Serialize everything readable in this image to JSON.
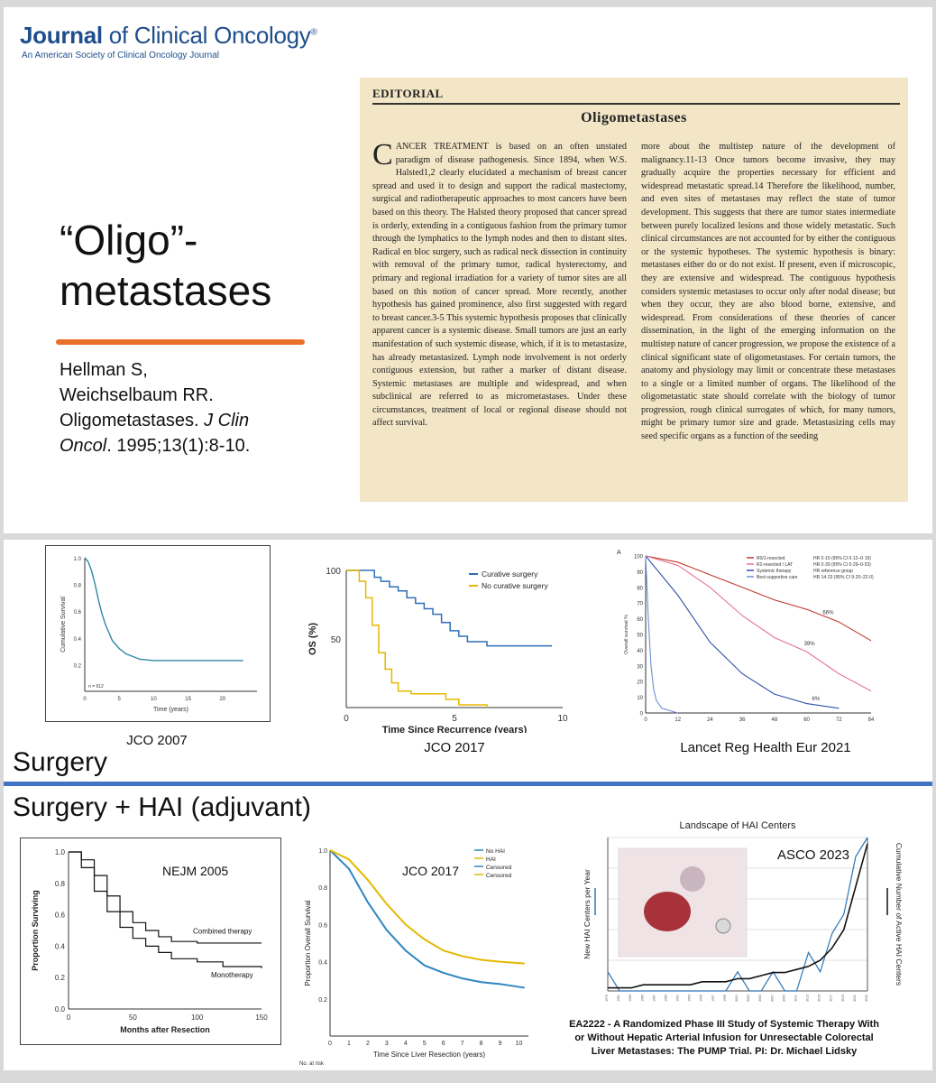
{
  "slide1": {
    "journal": {
      "name_bold": "Journal",
      "name_rest": " of Clinical Oncology",
      "registered": "®",
      "subtitle": "An American Society of Clinical Oncology Journal"
    },
    "title_line1": "“Oligo”-",
    "title_line2": "metastases",
    "citation": {
      "authors1": "Hellman S,",
      "authors2": "Weichselbaum RR.",
      "title": "Oligometastases. ",
      "journal": "J Clin",
      "journal2": "Oncol",
      "details": ". 1995;13(1):8-10."
    },
    "editorial": {
      "label": "EDITORIAL",
      "title": "Oligometastases",
      "dropcap": "C",
      "col1": "ANCER TREATMENT is based on an often unstated paradigm of disease pathogenesis. Since 1894, when W.S. Halsted1,2 clearly elucidated a mechanism of breast cancer spread and used it to design and support the radical mastectomy, surgical and radiotherapeutic approaches to most cancers have been based on this theory. The Halsted theory proposed that cancer spread is orderly, extending in a contiguous fashion from the primary tumor through the lymphatics to the lymph nodes and then to distant sites. Radical en bloc surgery, such as radical neck dissection in continuity with removal of the primary tumor, radical hysterectomy, and primary and regional irradiation for a variety of tumor sites are all based on this notion of cancer spread. More recently, another hypothesis has gained prominence, also first suggested with regard to breast cancer.3-5 This systemic hypothesis proposes that clinically apparent cancer is a systemic disease. Small tumors are just an early manifestation of such systemic disease, which, if it is to metastasize, has already metastasized. Lymph node involvement is not orderly contiguous extension, but rather a marker of distant disease. Systemic metastases are multiple and widespread, and when subclinical are referred to as micrometastases. Under these circumstances, treatment of local or regional disease should not affect survival.",
      "col2": "more about the multistep nature of the development of malignancy.11-13 Once tumors become invasive, they may gradually acquire the properties necessary for efficient and widespread metastatic spread.14 Therefore the likelihood, number, and even sites of metastases may reflect the state of tumor development. This suggests that there are tumor states intermediate between purely localized lesions and those widely metastatic. Such clinical circumstances are not accounted for by either the contiguous or the systemic hypotheses. The systemic hypothesis is binary: metastases either do or do not exist. If present, even if microscopic, they are extensive and widespread. The contiguous hypothesis considers systemic metastases to occur only after nodal disease; but when they occur, they are also blood borne, extensive, and widespread. From considerations of these theories of cancer dissemination, in the light of the emerging information on the multistep nature of cancer progression, we propose the existence of a clinical significant state of oligometastases. For certain tumors, the anatomy and physiology may limit or concentrate these metastases to a single or a limited number of organs. The likelihood of the oligometastatic state should correlate with the biology of tumor progression, rough clinical surrogates of which, for many tumors, might be primary tumor size and grade. Metastasizing cells may seed specific organs as a function of the seeding"
    }
  },
  "slide2": {
    "surgery_label": "Surgery",
    "surgery_hai_label": "Surgery + HAI (adjuvant)",
    "captions": {
      "c1": "JCO 2007",
      "c2": "JCO 2017",
      "c3": "Lancet Reg Health Eur 2021"
    },
    "trial_text": {
      "line1": "EA2222 - A Randomized Phase III Study of Systemic Therapy With",
      "line2": "or Without Hepatic Arterial Infusion for Unresectable Colorectal",
      "line3": "Liver Metastases: The PUMP Trial. PI: Dr. Michael Lidsky"
    }
  },
  "chart_data": [
    {
      "type": "line",
      "id": "jco2007",
      "xlabel": "Time (years)",
      "ylabel": "Cumulative Survival",
      "annotation": "n = 612",
      "xlim": [
        0,
        25
      ],
      "ylim": [
        0,
        1.0
      ],
      "xticks": [
        0,
        5,
        10,
        15,
        20
      ],
      "yticks": [
        0.2,
        0.4,
        0.6,
        0.8,
        1.0
      ],
      "series": [
        {
          "x": [
            0,
            0.5,
            1,
            1.5,
            2,
            2.5,
            3,
            3.5,
            4,
            5,
            6,
            7,
            8,
            9,
            10,
            12,
            15,
            18,
            21,
            23
          ],
          "y": [
            1.0,
            0.97,
            0.9,
            0.8,
            0.68,
            0.58,
            0.5,
            0.44,
            0.38,
            0.32,
            0.28,
            0.26,
            0.24,
            0.235,
            0.23,
            0.23,
            0.23,
            0.23,
            0.23,
            0.23
          ]
        }
      ]
    },
    {
      "type": "line",
      "id": "jco2017a",
      "xlabel": "Time Since Recurrence (years)",
      "ylabel": "OS (%)",
      "xlim": [
        0,
        10
      ],
      "ylim": [
        0,
        100
      ],
      "xticks": [
        0,
        5,
        10
      ],
      "yticks": [
        50,
        100
      ],
      "colors": [
        "#2f6fb7",
        "#e5b800"
      ],
      "series": [
        {
          "name": "Curative surgery",
          "x": [
            0,
            1.0,
            1.3,
            1.6,
            2.0,
            2.4,
            2.8,
            3.2,
            3.6,
            4.0,
            4.4,
            4.8,
            5.2,
            5.6,
            6.5,
            9.5
          ],
          "y": [
            100,
            100,
            95,
            92,
            88,
            85,
            80,
            76,
            72,
            68,
            62,
            56,
            52,
            48,
            45,
            45
          ]
        },
        {
          "name": "No curative surgery",
          "x": [
            0,
            0.6,
            0.9,
            1.2,
            1.5,
            1.8,
            2.1,
            2.4,
            3.0,
            4.0,
            4.6,
            5.2,
            6.5
          ],
          "y": [
            100,
            92,
            80,
            60,
            40,
            28,
            18,
            12,
            10,
            10,
            6,
            2,
            0
          ]
        }
      ]
    },
    {
      "type": "line",
      "id": "lancet2021",
      "panel_label": "A",
      "ylabel": "Overall survival %",
      "xlim": [
        0,
        84
      ],
      "ylim": [
        0,
        100
      ],
      "xticks": [
        0,
        12,
        24,
        36,
        48,
        60,
        72,
        84
      ],
      "yticks": [
        0,
        10,
        20,
        30,
        40,
        50,
        60,
        70,
        80,
        90,
        100
      ],
      "colors": [
        "#c0392b",
        "#e57399",
        "#2f4fa8",
        "#6d8fd6"
      ],
      "annotations": [
        "66%",
        "39%",
        "6%"
      ],
      "series": [
        {
          "name": "R0/1-resected",
          "hr": "HR 0·15 (95% CI 0·12–0·19)",
          "x": [
            0,
            12,
            24,
            36,
            48,
            60,
            72,
            84
          ],
          "y": [
            100,
            96,
            88,
            80,
            72,
            66,
            58,
            46
          ]
        },
        {
          "name": "R2-resected / LAT",
          "hr": "HR 0·39 (95% CI 0·29–0·53)",
          "x": [
            0,
            12,
            24,
            36,
            48,
            60,
            72,
            84
          ],
          "y": [
            100,
            94,
            80,
            62,
            48,
            39,
            25,
            14
          ]
        },
        {
          "name": "Systemic therapy",
          "hr": "HR reference group",
          "x": [
            0,
            12,
            24,
            36,
            48,
            60,
            72
          ],
          "y": [
            100,
            75,
            45,
            25,
            12,
            6,
            3
          ]
        },
        {
          "name": "Best supportive care",
          "hr": "HR 14·23 (95% CI 9·20–22·0)",
          "x": [
            0,
            1,
            2,
            3,
            4,
            6,
            12
          ],
          "y": [
            100,
            60,
            30,
            15,
            8,
            3,
            0
          ]
        }
      ]
    },
    {
      "type": "line",
      "id": "nejm2005",
      "title": "NEJM 2005",
      "xlabel": "Months after Resection",
      "ylabel": "Proportion Surviving",
      "xlim": [
        0,
        150
      ],
      "ylim": [
        0,
        1.0
      ],
      "xticks": [
        0,
        50,
        100,
        150
      ],
      "yticks": [
        0.0,
        0.2,
        0.4,
        0.6,
        0.8,
        1.0
      ],
      "series": [
        {
          "name": "Combined therapy",
          "x": [
            0,
            10,
            20,
            30,
            40,
            50,
            60,
            70,
            80,
            100,
            120,
            150
          ],
          "y": [
            1.0,
            0.95,
            0.85,
            0.72,
            0.62,
            0.55,
            0.5,
            0.46,
            0.43,
            0.42,
            0.42,
            0.42
          ]
        },
        {
          "name": "Monotherapy",
          "x": [
            0,
            10,
            20,
            30,
            40,
            50,
            60,
            70,
            80,
            100,
            120,
            150
          ],
          "y": [
            1.0,
            0.9,
            0.75,
            0.62,
            0.52,
            0.45,
            0.4,
            0.36,
            0.32,
            0.3,
            0.27,
            0.26
          ]
        }
      ]
    },
    {
      "type": "line",
      "id": "jco2017b",
      "title": "JCO 2017",
      "xlabel": "Time Since Liver Resection (years)",
      "ylabel": "Proportion Overall Survival",
      "xlim": [
        0,
        10.5
      ],
      "ylim": [
        0,
        1.0
      ],
      "xticks": [
        0,
        1,
        2,
        3,
        4,
        5,
        6,
        7,
        8,
        9,
        10
      ],
      "yticks": [
        0.2,
        0.4,
        0.6,
        0.8,
        1.0
      ],
      "colors": [
        "#2e86c1",
        "#e5b800"
      ],
      "legend": [
        "No HAI",
        "HAI",
        "Censored",
        "Censored"
      ],
      "risk_label": "No. at risk",
      "series": [
        {
          "name": "No HAI",
          "x": [
            0,
            1,
            2,
            3,
            4,
            5,
            6,
            7,
            8,
            9,
            10.3
          ],
          "y": [
            1.0,
            0.9,
            0.72,
            0.57,
            0.46,
            0.38,
            0.34,
            0.31,
            0.29,
            0.28,
            0.26
          ]
        },
        {
          "name": "HAI",
          "x": [
            0,
            1,
            2,
            3,
            4,
            5,
            6,
            7,
            8,
            9,
            10.3
          ],
          "y": [
            1.0,
            0.95,
            0.84,
            0.71,
            0.6,
            0.52,
            0.46,
            0.43,
            0.41,
            0.4,
            0.39
          ]
        }
      ]
    },
    {
      "type": "line",
      "id": "asco2023",
      "title": "Landscape of HAI Centers",
      "overlay_label": "ASCO 2023",
      "ylabel_left": "New HAI Centers per Year",
      "ylabel_right": "Cumulative Number of Active HAI Centers",
      "colors": [
        "#2e75b6",
        "#111111"
      ],
      "x": [
        "1979",
        "1981",
        "1983",
        "1985",
        "1987",
        "1989",
        "1991",
        "1993",
        "1995",
        "1997",
        "1999",
        "2001",
        "2003",
        "2005",
        "2007",
        "2009",
        "2011",
        "2013",
        "2015",
        "2017",
        "2019",
        "2021",
        "2022"
      ],
      "series": [
        {
          "name": "New HAI Centers per Year",
          "values": [
            1,
            0,
            0,
            0,
            0,
            0,
            0,
            0,
            0,
            0,
            0,
            1,
            0,
            0,
            1,
            0,
            0,
            2,
            1,
            3,
            4,
            7,
            8
          ]
        },
        {
          "name": "Cumulative Number of Active HAI Centers",
          "values": [
            1,
            1,
            1,
            2,
            2,
            2,
            2,
            2,
            3,
            3,
            3,
            4,
            4,
            5,
            6,
            6,
            7,
            8,
            10,
            14,
            20,
            34,
            48
          ]
        }
      ]
    }
  ]
}
